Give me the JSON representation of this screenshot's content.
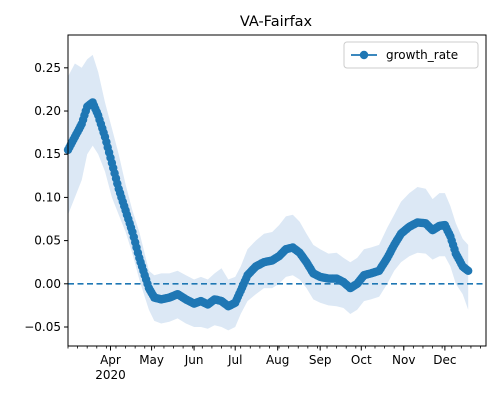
{
  "chart_data": {
    "type": "line",
    "title": "VA-Fairfax",
    "xlabel": "",
    "ylabel": "",
    "x_start": "2020-03-01",
    "x_end": "2020-12-31",
    "ylim": [
      -0.072,
      0.288
    ],
    "y_ticks": [
      -0.05,
      0.0,
      0.05,
      0.1,
      0.15,
      0.2,
      0.25
    ],
    "y_tick_labels": [
      "−0.05",
      "0.00",
      "0.05",
      "0.10",
      "0.15",
      "0.20",
      "0.25"
    ],
    "x_ticks": [
      {
        "date": "2020-04-01",
        "label": "Apr",
        "sublabel": "2020"
      },
      {
        "date": "2020-05-01",
        "label": "May",
        "sublabel": ""
      },
      {
        "date": "2020-06-01",
        "label": "Jun",
        "sublabel": ""
      },
      {
        "date": "2020-07-01",
        "label": "Jul",
        "sublabel": ""
      },
      {
        "date": "2020-08-01",
        "label": "Aug",
        "sublabel": ""
      },
      {
        "date": "2020-09-01",
        "label": "Sep",
        "sublabel": ""
      },
      {
        "date": "2020-10-01",
        "label": "Oct",
        "sublabel": ""
      },
      {
        "date": "2020-11-01",
        "label": "Nov",
        "sublabel": ""
      },
      {
        "date": "2020-12-01",
        "label": "Dec",
        "sublabel": ""
      }
    ],
    "minor_ticks": "weekly",
    "grid": false,
    "legend": {
      "position": "top-right",
      "entries": [
        "growth_rate"
      ]
    },
    "reference_line": {
      "y": 0,
      "style": "dashed",
      "color": "#1f77b4"
    },
    "series": [
      {
        "name": "growth_rate",
        "color": "#1f77b4",
        "band_color": "#dce8f5",
        "points": [
          {
            "x": "2020-03-01",
            "y": 0.155,
            "lo": 0.08,
            "hi": 0.24
          },
          {
            "x": "2020-03-06",
            "y": 0.17,
            "lo": 0.1,
            "hi": 0.255
          },
          {
            "x": "2020-03-11",
            "y": 0.185,
            "lo": 0.12,
            "hi": 0.25
          },
          {
            "x": "2020-03-15",
            "y": 0.205,
            "lo": 0.15,
            "hi": 0.26
          },
          {
            "x": "2020-03-19",
            "y": 0.21,
            "lo": 0.16,
            "hi": 0.265
          },
          {
            "x": "2020-03-23",
            "y": 0.195,
            "lo": 0.15,
            "hi": 0.245
          },
          {
            "x": "2020-03-28",
            "y": 0.17,
            "lo": 0.13,
            "hi": 0.21
          },
          {
            "x": "2020-04-02",
            "y": 0.14,
            "lo": 0.1,
            "hi": 0.18
          },
          {
            "x": "2020-04-07",
            "y": 0.11,
            "lo": 0.08,
            "hi": 0.15
          },
          {
            "x": "2020-04-12",
            "y": 0.085,
            "lo": 0.06,
            "hi": 0.115
          },
          {
            "x": "2020-04-17",
            "y": 0.06,
            "lo": 0.035,
            "hi": 0.085
          },
          {
            "x": "2020-04-22",
            "y": 0.03,
            "lo": 0.005,
            "hi": 0.06
          },
          {
            "x": "2020-04-26",
            "y": 0.01,
            "lo": -0.015,
            "hi": 0.035
          },
          {
            "x": "2020-04-29",
            "y": -0.005,
            "lo": -0.03,
            "hi": 0.015
          },
          {
            "x": "2020-05-03",
            "y": -0.016,
            "lo": -0.043,
            "hi": 0.01
          },
          {
            "x": "2020-05-08",
            "y": -0.018,
            "lo": -0.046,
            "hi": 0.012
          },
          {
            "x": "2020-05-14",
            "y": -0.016,
            "lo": -0.044,
            "hi": 0.012
          },
          {
            "x": "2020-05-20",
            "y": -0.012,
            "lo": -0.04,
            "hi": 0.015
          },
          {
            "x": "2020-05-26",
            "y": -0.018,
            "lo": -0.046,
            "hi": 0.01
          },
          {
            "x": "2020-06-01",
            "y": -0.023,
            "lo": -0.05,
            "hi": 0.005
          },
          {
            "x": "2020-06-06",
            "y": -0.02,
            "lo": -0.05,
            "hi": 0.008
          },
          {
            "x": "2020-06-11",
            "y": -0.024,
            "lo": -0.052,
            "hi": 0.005
          },
          {
            "x": "2020-06-16",
            "y": -0.018,
            "lo": -0.048,
            "hi": 0.012
          },
          {
            "x": "2020-06-21",
            "y": -0.02,
            "lo": -0.05,
            "hi": 0.018
          },
          {
            "x": "2020-06-26",
            "y": -0.026,
            "lo": -0.054,
            "hi": 0.005
          },
          {
            "x": "2020-07-01",
            "y": -0.022,
            "lo": -0.05,
            "hi": 0.008
          },
          {
            "x": "2020-07-05",
            "y": -0.008,
            "lo": -0.035,
            "hi": 0.02
          },
          {
            "x": "2020-07-10",
            "y": 0.01,
            "lo": -0.02,
            "hi": 0.04
          },
          {
            "x": "2020-07-16",
            "y": 0.02,
            "lo": -0.012,
            "hi": 0.05
          },
          {
            "x": "2020-07-22",
            "y": 0.025,
            "lo": -0.005,
            "hi": 0.058
          },
          {
            "x": "2020-07-28",
            "y": 0.027,
            "lo": -0.005,
            "hi": 0.06
          },
          {
            "x": "2020-08-02",
            "y": 0.032,
            "lo": 0.0,
            "hi": 0.068
          },
          {
            "x": "2020-08-07",
            "y": 0.04,
            "lo": 0.008,
            "hi": 0.078
          },
          {
            "x": "2020-08-12",
            "y": 0.042,
            "lo": 0.01,
            "hi": 0.08
          },
          {
            "x": "2020-08-17",
            "y": 0.036,
            "lo": 0.005,
            "hi": 0.072
          },
          {
            "x": "2020-08-22",
            "y": 0.025,
            "lo": -0.005,
            "hi": 0.058
          },
          {
            "x": "2020-08-27",
            "y": 0.012,
            "lo": -0.018,
            "hi": 0.045
          },
          {
            "x": "2020-09-01",
            "y": 0.008,
            "lo": -0.022,
            "hi": 0.04
          },
          {
            "x": "2020-09-07",
            "y": 0.006,
            "lo": -0.025,
            "hi": 0.035
          },
          {
            "x": "2020-09-13",
            "y": 0.006,
            "lo": -0.026,
            "hi": 0.036
          },
          {
            "x": "2020-09-18",
            "y": 0.002,
            "lo": -0.028,
            "hi": 0.03
          },
          {
            "x": "2020-09-23",
            "y": -0.005,
            "lo": -0.035,
            "hi": 0.025
          },
          {
            "x": "2020-09-28",
            "y": 0.0,
            "lo": -0.03,
            "hi": 0.03
          },
          {
            "x": "2020-10-03",
            "y": 0.01,
            "lo": -0.02,
            "hi": 0.04
          },
          {
            "x": "2020-10-08",
            "y": 0.012,
            "lo": -0.018,
            "hi": 0.042
          },
          {
            "x": "2020-10-14",
            "y": 0.015,
            "lo": -0.015,
            "hi": 0.045
          },
          {
            "x": "2020-10-20",
            "y": 0.03,
            "lo": 0.0,
            "hi": 0.065
          },
          {
            "x": "2020-10-25",
            "y": 0.045,
            "lo": 0.015,
            "hi": 0.08
          },
          {
            "x": "2020-10-30",
            "y": 0.058,
            "lo": 0.025,
            "hi": 0.095
          },
          {
            "x": "2020-11-05",
            "y": 0.066,
            "lo": 0.032,
            "hi": 0.105
          },
          {
            "x": "2020-11-11",
            "y": 0.071,
            "lo": 0.036,
            "hi": 0.112
          },
          {
            "x": "2020-11-17",
            "y": 0.07,
            "lo": 0.035,
            "hi": 0.11
          },
          {
            "x": "2020-11-22",
            "y": 0.062,
            "lo": 0.028,
            "hi": 0.098
          },
          {
            "x": "2020-11-27",
            "y": 0.067,
            "lo": 0.032,
            "hi": 0.105
          },
          {
            "x": "2020-12-01",
            "y": 0.068,
            "lo": 0.032,
            "hi": 0.105
          },
          {
            "x": "2020-12-05",
            "y": 0.055,
            "lo": 0.02,
            "hi": 0.09
          },
          {
            "x": "2020-12-09",
            "y": 0.035,
            "lo": 0.0,
            "hi": 0.07
          },
          {
            "x": "2020-12-14",
            "y": 0.02,
            "lo": -0.012,
            "hi": 0.052
          },
          {
            "x": "2020-12-18",
            "y": 0.015,
            "lo": -0.03,
            "hi": 0.045
          }
        ]
      }
    ]
  }
}
